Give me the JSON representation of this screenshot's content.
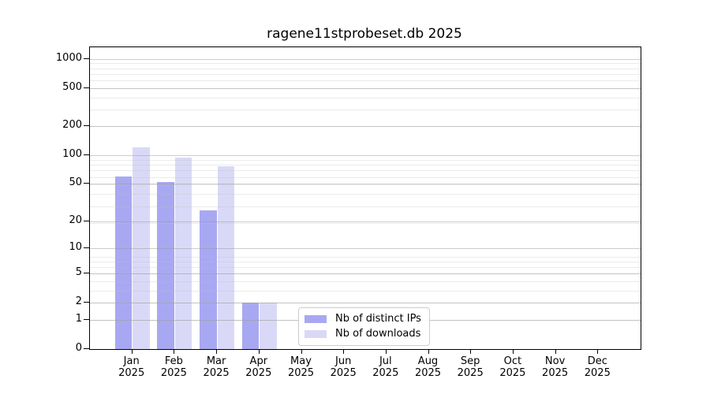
{
  "chart_data": {
    "type": "bar",
    "title": "ragene11stprobeset.db 2025",
    "categories": [
      "Jan",
      "Feb",
      "Mar",
      "Apr",
      "May",
      "Jun",
      "Jul",
      "Aug",
      "Sep",
      "Oct",
      "Nov",
      "Dec"
    ],
    "year": "2025",
    "series": [
      {
        "name": "Nb of distinct IPs",
        "color": "#a8a8f2",
        "values": [
          60,
          52,
          26,
          2,
          0,
          0,
          0,
          0,
          0,
          0,
          0,
          0
        ]
      },
      {
        "name": "Nb of downloads",
        "color": "#d9d9f7",
        "values": [
          120,
          95,
          77,
          2,
          0,
          0,
          0,
          0,
          0,
          0,
          0,
          0
        ]
      }
    ],
    "y_ticks": [
      0,
      1,
      2,
      5,
      10,
      20,
      50,
      100,
      200,
      500,
      1000
    ],
    "y_scale": "log10(value+1)",
    "grid": true,
    "legend_position": "bottom-center",
    "colors": {
      "axis": "#000000",
      "major_grid": "#c6c6c6",
      "minor_grid": "#ececec",
      "background": "#ffffff"
    }
  }
}
